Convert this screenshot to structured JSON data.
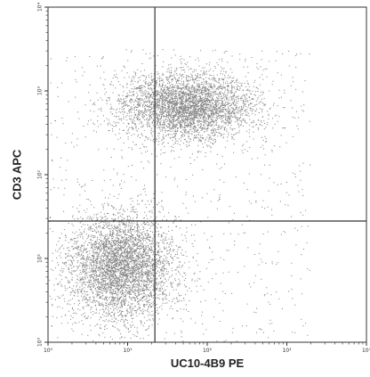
{
  "chart_data": {
    "type": "scatter",
    "xlabel": "UC10-4B9 PE",
    "ylabel": "CD3 APC",
    "x_scale": "log",
    "y_scale": "log",
    "xlim": [
      1,
      10000
    ],
    "ylim": [
      1,
      10000
    ],
    "x_ticks": [
      {
        "value": 1,
        "label": "10⁰"
      },
      {
        "value": 10,
        "label": "10¹"
      },
      {
        "value": 100,
        "label": "10²"
      },
      {
        "value": 1000,
        "label": "10³"
      },
      {
        "value": 10000,
        "label": "10⁴"
      }
    ],
    "y_ticks": [
      {
        "value": 1,
        "label": "10⁰"
      },
      {
        "value": 10,
        "label": "10¹"
      },
      {
        "value": 100,
        "label": "10²"
      },
      {
        "value": 1000,
        "label": "10³"
      },
      {
        "value": 10000,
        "label": "10⁴"
      }
    ],
    "quadrant_gates": {
      "x": 22,
      "y": 28
    },
    "populations": [
      {
        "center": [
          8,
          8
        ],
        "spread": [
          0.34,
          0.32
        ],
        "count": 4200
      },
      {
        "center": [
          55,
          650
        ],
        "spread": [
          0.42,
          0.2
        ],
        "count": 3800
      }
    ],
    "colors": {
      "points": "#222222",
      "gates": "#333333",
      "frame": "#333333"
    }
  }
}
